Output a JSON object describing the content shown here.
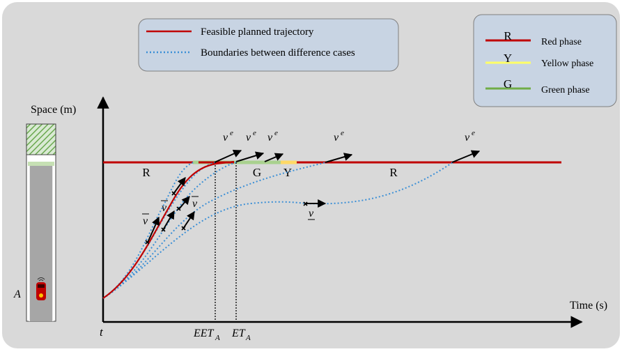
{
  "colors": {
    "panel_bg": "#d9d9d9",
    "legend_box_bg": "#c8d4e3",
    "legend_box_border": "#7f7f7f",
    "signal_red": "#c00000",
    "signal_yellow": "#ffff66",
    "signal_green": "#92d050",
    "trajectory_red": "#c00000",
    "boundary_blue": "#3b8fd6",
    "axis": "#000000",
    "road": "#a6a6a6",
    "hatch_green": "#6aa84f"
  },
  "legend_left": {
    "items": [
      {
        "label": "Feasible planned trajectory",
        "style": "solid",
        "icon": "red-solid-line"
      },
      {
        "label": "Boundaries between difference cases",
        "style": "dotted",
        "icon": "blue-dotted-line"
      }
    ]
  },
  "legend_right": {
    "items": [
      {
        "letter": "R",
        "label": "Red phase",
        "color": "#c00000"
      },
      {
        "letter": "Y",
        "label": "Yellow phase",
        "color": "#ffff66"
      },
      {
        "letter": "G",
        "label": "Green phase",
        "color": "#92d050"
      }
    ]
  },
  "axes": {
    "y_label": "Space (m)",
    "x_label": "Time (s)",
    "origin_label": "t",
    "vehicle_label": "A",
    "eet_label_main": "EET",
    "eet_label_sub": "A",
    "et_label_main": "ET",
    "et_label_sub": "A"
  },
  "signal_labels": [
    {
      "text": "R"
    },
    {
      "text": "G"
    },
    {
      "text": "Y"
    },
    {
      "text": "R"
    }
  ],
  "velocity_labels": {
    "ve_main": "v",
    "ve_sup": "e",
    "vbar": "v",
    "vunder": "v"
  }
}
